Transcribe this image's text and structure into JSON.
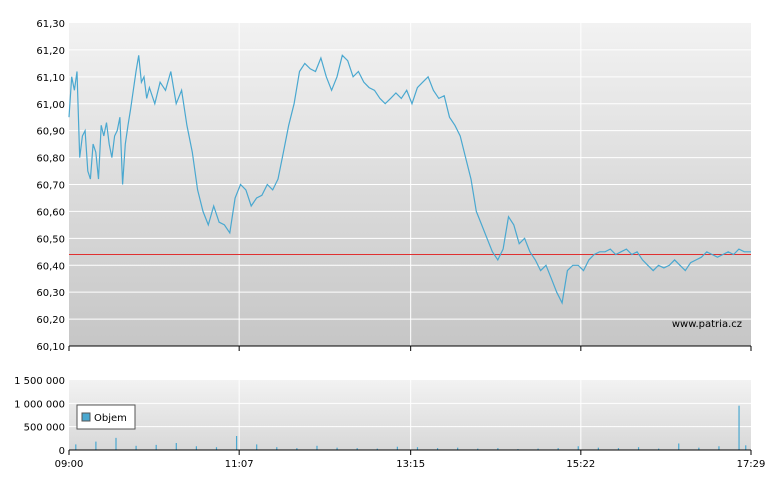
{
  "chart_data": [
    {
      "type": "line",
      "name": "price",
      "x_ticks": [
        "09:00",
        "11:07",
        "13:15",
        "15:22",
        "17:29"
      ],
      "y_ticks": [
        "60,10",
        "60,20",
        "60,30",
        "60,40",
        "60,50",
        "60,60",
        "60,70",
        "60,80",
        "60,90",
        "61,00",
        "61,10",
        "61,20",
        "61,30"
      ],
      "ylim": [
        60.1,
        61.3
      ],
      "xlim": [
        "09:00",
        "17:29"
      ],
      "reference_line": 60.44,
      "watermark": "www.patria.cz",
      "grid": true,
      "colors": {
        "line": "#4aa8d0",
        "reference": "#e03030",
        "grid": "#ffffff",
        "bg_top": "#f0f0f0",
        "bg_bottom": "#c8c8c8"
      },
      "series": [
        {
          "x": [
            "09:00",
            "09:02",
            "09:04",
            "09:06",
            "09:08",
            "09:10",
            "09:12",
            "09:14",
            "09:16",
            "09:18",
            "09:20",
            "09:22",
            "09:24",
            "09:26",
            "09:28",
            "09:30",
            "09:32",
            "09:34",
            "09:36",
            "09:38",
            "09:40",
            "09:42",
            "09:44",
            "09:46",
            "09:48",
            "09:50",
            "09:52",
            "09:54",
            "09:56",
            "09:58",
            "10:00",
            "10:04",
            "10:08",
            "10:12",
            "10:16",
            "10:20",
            "10:24",
            "10:28",
            "10:32",
            "10:36",
            "10:40",
            "10:44",
            "10:48",
            "10:52",
            "10:56",
            "11:00",
            "11:04",
            "11:08",
            "11:12",
            "11:16",
            "11:20",
            "11:24",
            "11:28",
            "11:32",
            "11:36",
            "11:40",
            "11:44",
            "11:48",
            "11:52",
            "11:56",
            "12:00",
            "12:04",
            "12:08",
            "12:12",
            "12:16",
            "12:20",
            "12:24",
            "12:28",
            "12:32",
            "12:36",
            "12:40",
            "12:44",
            "12:48",
            "12:52",
            "12:56",
            "13:00",
            "13:04",
            "13:08",
            "13:12",
            "13:16",
            "13:20",
            "13:24",
            "13:28",
            "13:32",
            "13:36",
            "13:40",
            "13:44",
            "13:48",
            "13:52",
            "13:56",
            "14:00",
            "14:04",
            "14:08",
            "14:12",
            "14:16",
            "14:20",
            "14:24",
            "14:28",
            "14:32",
            "14:36",
            "14:40",
            "14:44",
            "14:48",
            "14:52",
            "14:56",
            "15:00",
            "15:04",
            "15:08",
            "15:12",
            "15:16",
            "15:20",
            "15:24",
            "15:28",
            "15:32",
            "15:36",
            "15:40",
            "15:44",
            "15:48",
            "15:52",
            "15:56",
            "16:00",
            "16:04",
            "16:08",
            "16:12",
            "16:16",
            "16:20",
            "16:24",
            "16:28",
            "16:32",
            "16:36",
            "16:40",
            "16:44",
            "16:48",
            "16:52",
            "16:56",
            "17:00",
            "17:04",
            "17:08",
            "17:12",
            "17:16",
            "17:20",
            "17:24",
            "17:29"
          ],
          "y": [
            60.95,
            61.1,
            61.05,
            61.12,
            60.8,
            60.88,
            60.9,
            60.75,
            60.72,
            60.85,
            60.82,
            60.72,
            60.92,
            60.88,
            60.93,
            60.85,
            60.8,
            60.88,
            60.9,
            60.95,
            60.7,
            60.85,
            60.92,
            60.98,
            61.05,
            61.12,
            61.18,
            61.08,
            61.1,
            61.02,
            61.06,
            61.0,
            61.08,
            61.05,
            61.12,
            61.0,
            61.05,
            60.92,
            60.82,
            60.68,
            60.6,
            60.55,
            60.62,
            60.56,
            60.55,
            60.52,
            60.65,
            60.7,
            60.68,
            60.62,
            60.65,
            60.66,
            60.7,
            60.68,
            60.72,
            60.82,
            60.92,
            61.0,
            61.12,
            61.15,
            61.13,
            61.12,
            61.17,
            61.1,
            61.05,
            61.1,
            61.18,
            61.16,
            61.1,
            61.12,
            61.08,
            61.06,
            61.05,
            61.02,
            61.0,
            61.02,
            61.04,
            61.02,
            61.05,
            61.0,
            61.06,
            61.08,
            61.1,
            61.05,
            61.02,
            61.03,
            60.95,
            60.92,
            60.88,
            60.8,
            60.72,
            60.6,
            60.55,
            60.5,
            60.45,
            60.42,
            60.46,
            60.58,
            60.55,
            60.48,
            60.5,
            60.45,
            60.42,
            60.38,
            60.4,
            60.35,
            60.3,
            60.26,
            60.38,
            60.4,
            60.4,
            60.38,
            60.42,
            60.44,
            60.45,
            60.45,
            60.46,
            60.44,
            60.45,
            60.46,
            60.44,
            60.45,
            60.42,
            60.4,
            60.38,
            60.4,
            60.39,
            60.4,
            60.42,
            60.4,
            60.38,
            60.41,
            60.42,
            60.43,
            60.45,
            60.44,
            60.43,
            60.44,
            60.45,
            60.44,
            60.46,
            60.45,
            60.45
          ]
        }
      ]
    },
    {
      "type": "bar",
      "name": "volume",
      "x_ticks": [
        "09:00",
        "11:07",
        "13:15",
        "15:22",
        "17:29"
      ],
      "y_ticks": [
        "0",
        "500 000",
        "1 000 000",
        "1 500 000"
      ],
      "ylim": [
        0,
        1500000
      ],
      "legend": {
        "label": "Objem",
        "position": "left"
      },
      "colors": {
        "bar": "#4aa8d0"
      },
      "series": [
        {
          "x": [
            "09:05",
            "09:20",
            "09:35",
            "09:50",
            "10:05",
            "10:20",
            "10:35",
            "10:50",
            "11:05",
            "11:20",
            "11:35",
            "11:50",
            "12:05",
            "12:20",
            "12:35",
            "12:50",
            "13:05",
            "13:20",
            "13:35",
            "13:50",
            "14:05",
            "14:20",
            "14:35",
            "14:50",
            "15:05",
            "15:20",
            "15:35",
            "15:50",
            "16:05",
            "16:20",
            "16:35",
            "16:50",
            "17:05",
            "17:20",
            "17:25"
          ],
          "values": [
            120000,
            180000,
            260000,
            90000,
            110000,
            150000,
            80000,
            60000,
            300000,
            120000,
            60000,
            40000,
            90000,
            50000,
            40000,
            30000,
            70000,
            60000,
            40000,
            50000,
            30000,
            40000,
            20000,
            30000,
            40000,
            80000,
            50000,
            40000,
            60000,
            30000,
            140000,
            50000,
            80000,
            950000,
            100000
          ]
        }
      ]
    }
  ]
}
